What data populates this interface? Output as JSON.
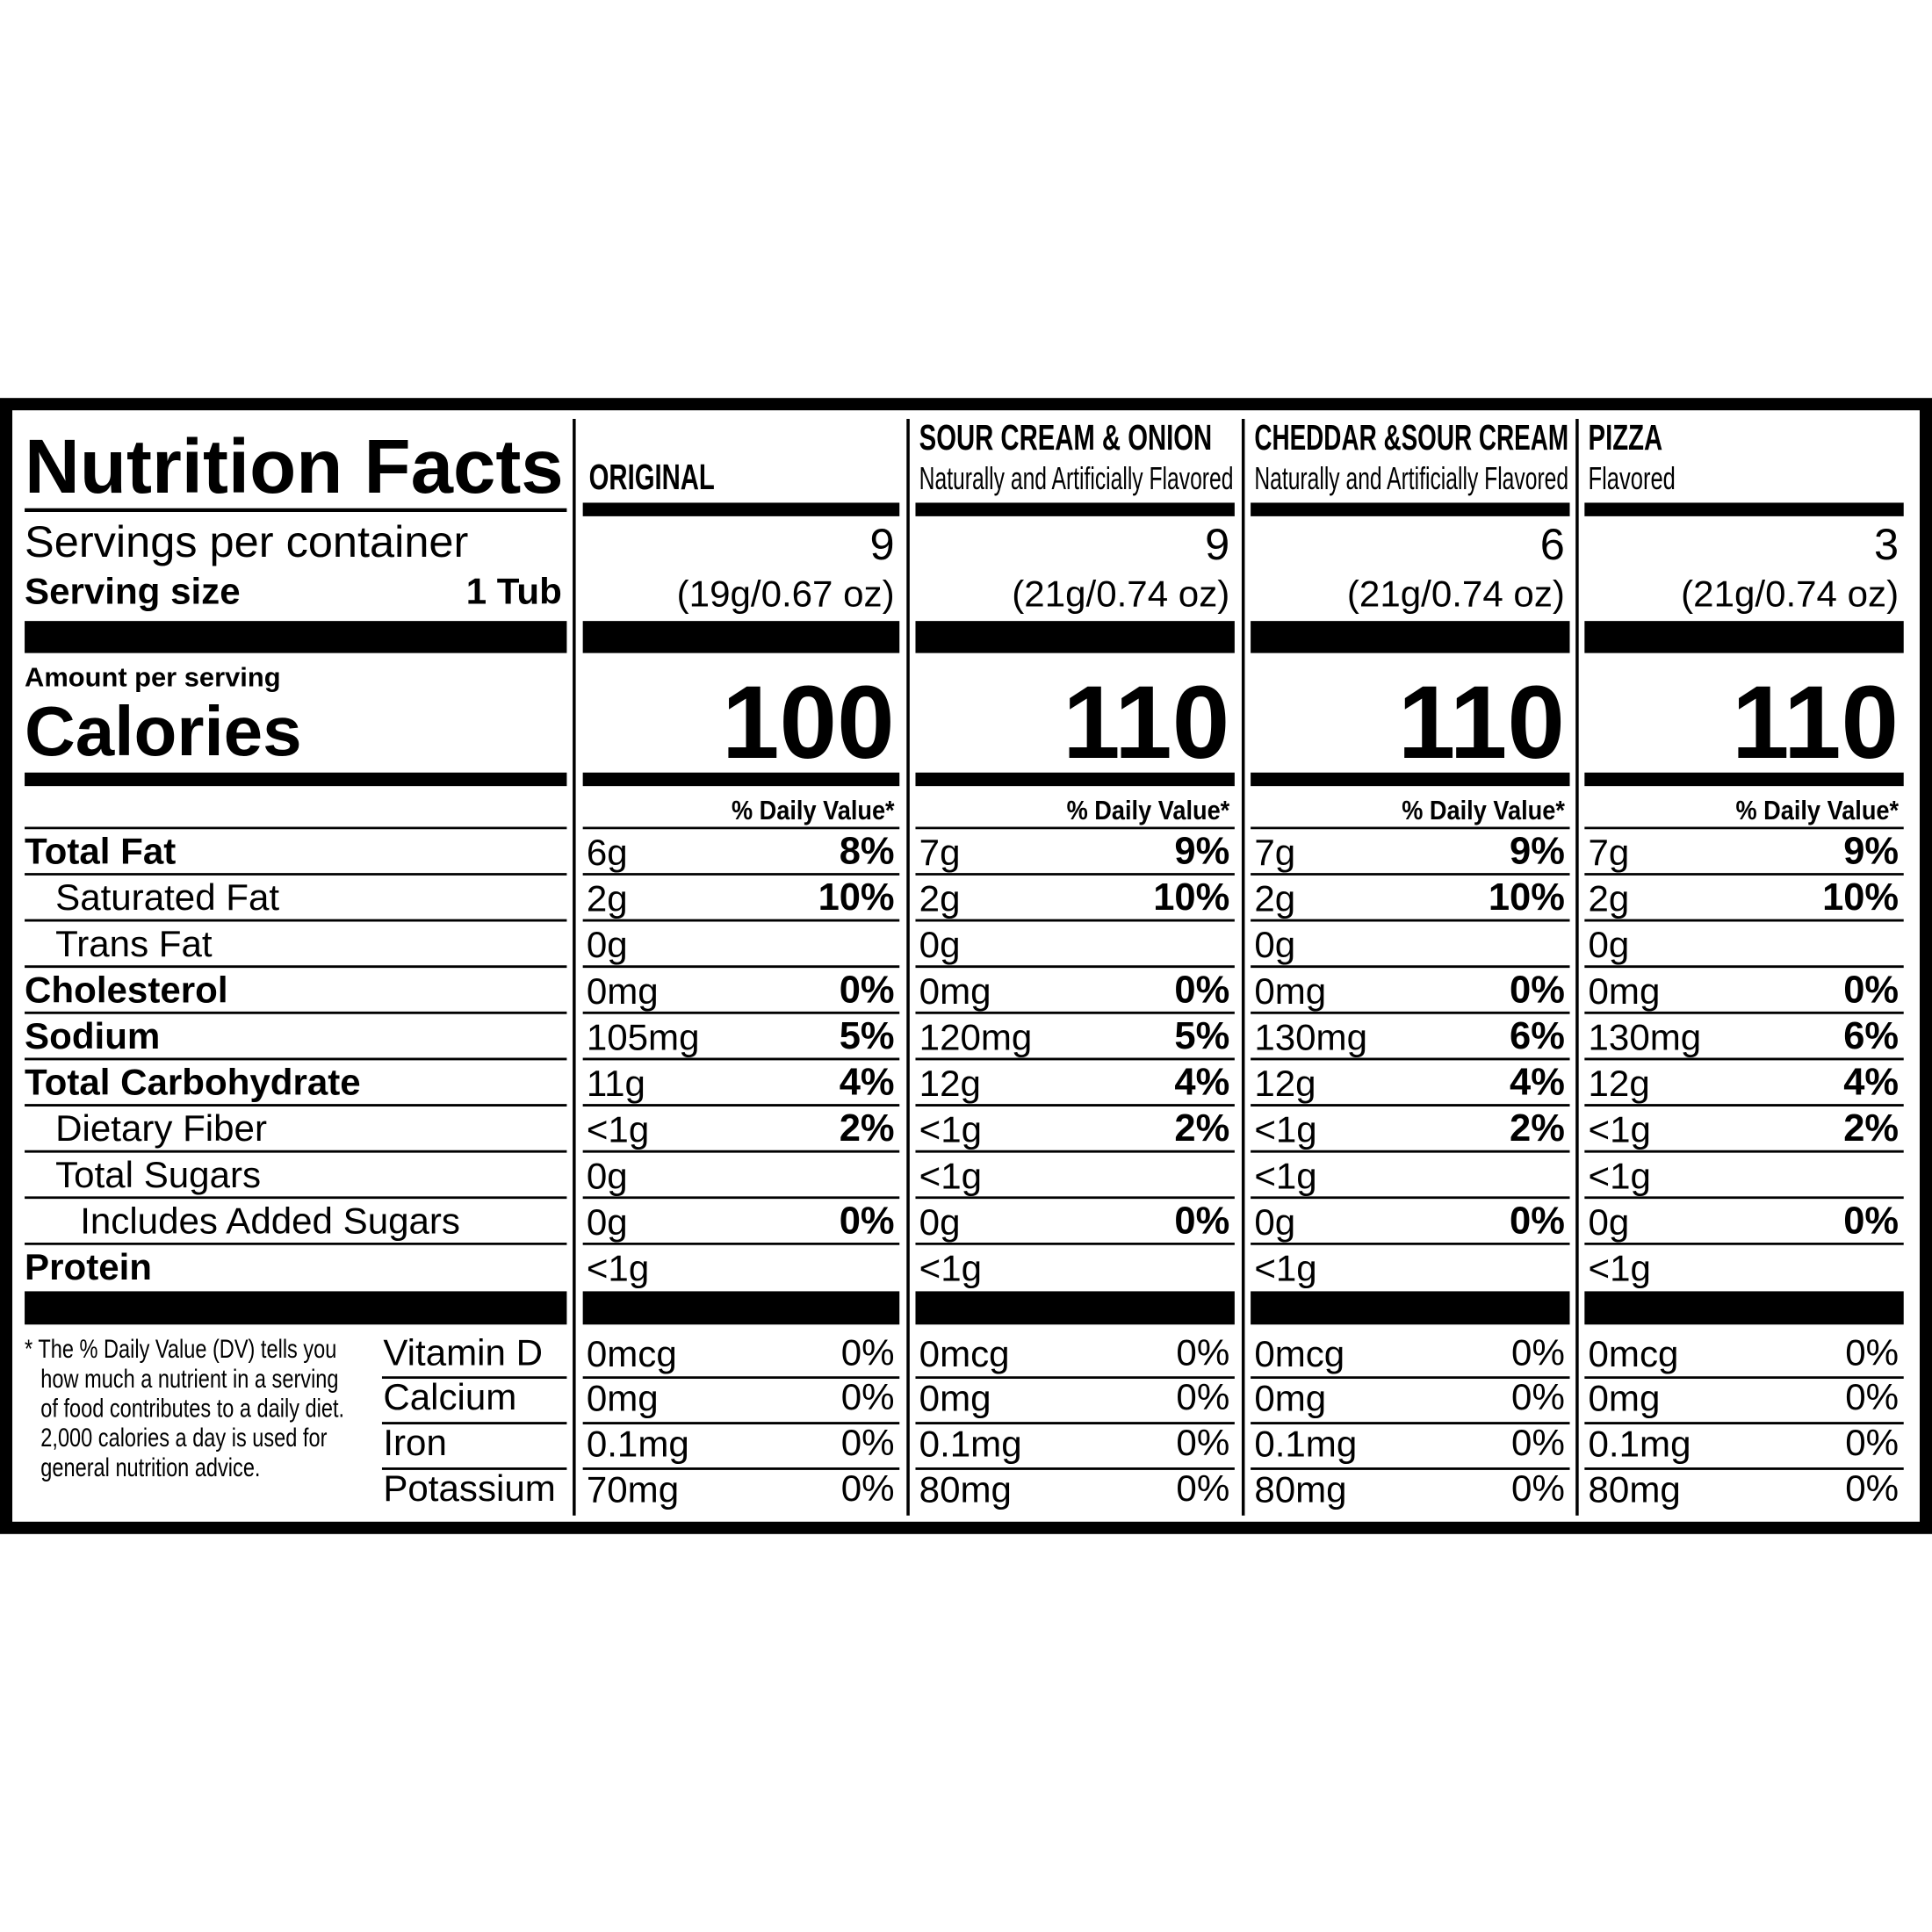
{
  "label": {
    "title": "Nutrition Facts",
    "servings_label": "Servings per container",
    "serving_size_label": "Serving size",
    "serving_size": "1 Tub",
    "amount_label": "Amount per serving",
    "calories_label": "Calories",
    "dv_header": "% Daily Value*",
    "nutrients": [
      "Total Fat",
      "Saturated Fat",
      "Trans Fat",
      "Cholesterol",
      "Sodium",
      "Total Carbohydrate",
      "Dietary Fiber",
      "Total Sugars",
      "Includes Added Sugars",
      "Protein"
    ],
    "vitamins": [
      "Vitamin D",
      "Calcium",
      "Iron",
      "Potassium"
    ],
    "footnote": [
      "* The % Daily Value (DV) tells you",
      "how much a nutrient in a serving",
      "of food contributes to a daily diet.",
      "2,000 calories a day is used for",
      "general nutrition advice."
    ]
  },
  "products": [
    {
      "name": "ORIGINAL",
      "servings": 9,
      "serving_weight": "(19g/0.67 oz)",
      "calories": 100,
      "nutrients": [
        {
          "amount": "6g",
          "dv": "8%"
        },
        {
          "amount": "2g",
          "dv": "10%"
        },
        {
          "amount": "0g"
        },
        {
          "amount": "0mg",
          "dv": "0%"
        },
        {
          "amount": "105mg",
          "dv": "5%"
        },
        {
          "amount": "11g",
          "dv": "4%"
        },
        {
          "amount": "<1g",
          "dv": "2%"
        },
        {
          "amount": "0g"
        },
        {
          "amount": "0g",
          "dv": "0%"
        },
        {
          "amount": "<1g"
        }
      ],
      "vitamins": [
        {
          "amount": "0mcg",
          "dv": "0%"
        },
        {
          "amount": "0mg",
          "dv": "0%"
        },
        {
          "amount": "0.1mg",
          "dv": "0%"
        },
        {
          "amount": "70mg",
          "dv": "0%"
        }
      ]
    },
    {
      "name": "SOUR CREAM & ONION",
      "subtitle": "Naturally and Artificially Flavored",
      "servings": 9,
      "serving_weight": "(21g/0.74 oz)",
      "calories": 110,
      "nutrients": [
        {
          "amount": "7g",
          "dv": "9%"
        },
        {
          "amount": "2g",
          "dv": "10%"
        },
        {
          "amount": "0g"
        },
        {
          "amount": "0mg",
          "dv": "0%"
        },
        {
          "amount": "120mg",
          "dv": "5%"
        },
        {
          "amount": "12g",
          "dv": "4%"
        },
        {
          "amount": "<1g",
          "dv": "2%"
        },
        {
          "amount": "<1g"
        },
        {
          "amount": "0g",
          "dv": "0%"
        },
        {
          "amount": "<1g"
        }
      ],
      "vitamins": [
        {
          "amount": "0mcg",
          "dv": "0%"
        },
        {
          "amount": "0mg",
          "dv": "0%"
        },
        {
          "amount": "0.1mg",
          "dv": "0%"
        },
        {
          "amount": "80mg",
          "dv": "0%"
        }
      ]
    },
    {
      "name": "CHEDDAR &SOUR CREAM",
      "subtitle": "Naturally and Artificially Flavored",
      "servings": 6,
      "serving_weight": "(21g/0.74 oz)",
      "calories": 110,
      "nutrients": [
        {
          "amount": "7g",
          "dv": "9%"
        },
        {
          "amount": "2g",
          "dv": "10%"
        },
        {
          "amount": "0g"
        },
        {
          "amount": "0mg",
          "dv": "0%"
        },
        {
          "amount": "130mg",
          "dv": "6%"
        },
        {
          "amount": "12g",
          "dv": "4%"
        },
        {
          "amount": "<1g",
          "dv": "2%"
        },
        {
          "amount": "<1g"
        },
        {
          "amount": "0g",
          "dv": "0%"
        },
        {
          "amount": "<1g"
        }
      ],
      "vitamins": [
        {
          "amount": "0mcg",
          "dv": "0%"
        },
        {
          "amount": "0mg",
          "dv": "0%"
        },
        {
          "amount": "0.1mg",
          "dv": "0%"
        },
        {
          "amount": "80mg",
          "dv": "0%"
        }
      ]
    },
    {
      "name": "PIZZA",
      "subtitle": "Flavored",
      "servings": 3,
      "serving_weight": "(21g/0.74 oz)",
      "calories": 110,
      "nutrients": [
        {
          "amount": "7g",
          "dv": "9%"
        },
        {
          "amount": "2g",
          "dv": "10%"
        },
        {
          "amount": "0g"
        },
        {
          "amount": "0mg",
          "dv": "0%"
        },
        {
          "amount": "130mg",
          "dv": "6%"
        },
        {
          "amount": "12g",
          "dv": "4%"
        },
        {
          "amount": "<1g",
          "dv": "2%"
        },
        {
          "amount": "<1g"
        },
        {
          "amount": "0g",
          "dv": "0%"
        },
        {
          "amount": "<1g"
        }
      ],
      "vitamins": [
        {
          "amount": "0mcg",
          "dv": "0%"
        },
        {
          "amount": "0mg",
          "dv": "0%"
        },
        {
          "amount": "0.1mg",
          "dv": "0%"
        },
        {
          "amount": "80mg",
          "dv": "0%"
        }
      ]
    }
  ]
}
